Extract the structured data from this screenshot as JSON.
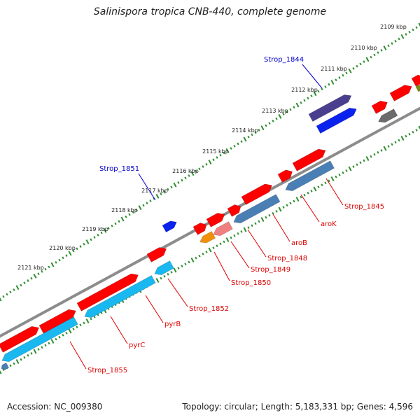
{
  "title": "Salinispora tropica CNB-440, complete genome",
  "footer": {
    "accession": "Accession: NC_009380",
    "topology": "Topology: circular; Length: 5,183,331 bp; Genes: 4,596"
  },
  "colors": {
    "backbone": "#8c8c8c",
    "ticks": "#2f8f2f",
    "label_blue": "#0000cc",
    "label_red": "#dd0000",
    "cds_forward": "#ff0000",
    "cds_reverse": "#1ab8f0",
    "steelblue": "#4a7fb5",
    "dark_purple": "#4a3f8f",
    "blue": "#0a22ee",
    "grey": "#6b6b6b",
    "orange": "#f0900a",
    "pink": "#f08080",
    "olive": "#7a8a10"
  },
  "kbp_labels": [
    "2109 kbp",
    "2110 kbp",
    "2111 kbp",
    "2112 kbp",
    "2113 kbp",
    "2114 kbp",
    "2115 kbp",
    "2116 kbp",
    "2117 kbp",
    "2118 kbp",
    "2119 kbp",
    "2120 kbp",
    "2121 kbp"
  ],
  "gene_labels": [
    {
      "text": "Strop_1844",
      "color": "blue"
    },
    {
      "text": "Strop_1851",
      "color": "blue"
    },
    {
      "text": "Strop_1845",
      "color": "red"
    },
    {
      "text": "aroK",
      "color": "red"
    },
    {
      "text": "aroB",
      "color": "red"
    },
    {
      "text": "Strop_1848",
      "color": "red"
    },
    {
      "text": "Strop_1849",
      "color": "red"
    },
    {
      "text": "Strop_1850",
      "color": "red"
    },
    {
      "text": "Strop_1852",
      "color": "red"
    },
    {
      "text": "pyrB",
      "color": "red"
    },
    {
      "text": "pyrC",
      "color": "red"
    },
    {
      "text": "Strop_1855",
      "color": "red"
    }
  ]
}
